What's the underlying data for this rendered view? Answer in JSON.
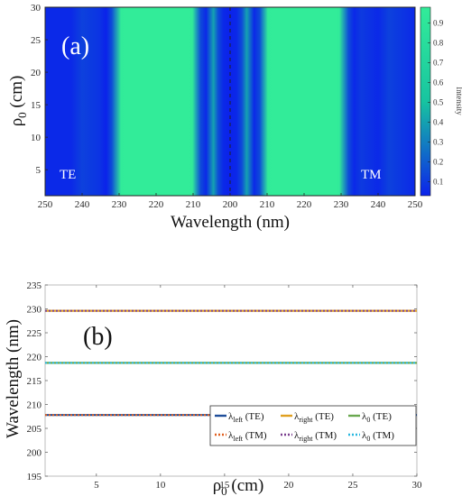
{
  "chart_data": [
    {
      "type": "heatmap",
      "panel_label": "(a)",
      "xlabel": "Wavelength (nm)",
      "ylabel_main": "ρ",
      "ylabel_sub": "0",
      "ylabel_unit": " (cm)",
      "x_ticks": [
        "250",
        "240",
        "230",
        "220",
        "210",
        "200",
        "210",
        "220",
        "230",
        "240",
        "250"
      ],
      "y_ticks": [
        "5",
        "10",
        "15",
        "20",
        "25",
        "30"
      ],
      "y_values": [
        5,
        10,
        15,
        20,
        25,
        30
      ],
      "ylim": [
        1,
        30
      ],
      "left_annotation": "TE",
      "right_annotation": "TM",
      "colorbar_label": "Intensity",
      "colorbar_ticks": [
        "0.1",
        "0.2",
        "0.3",
        "0.4",
        "0.5",
        "0.6",
        "0.7",
        "0.8",
        "0.9"
      ],
      "colorbar_values": [
        0.1,
        0.2,
        0.3,
        0.4,
        0.5,
        0.6,
        0.7,
        0.8,
        0.9
      ],
      "colorbar_range": [
        0.03,
        0.98
      ],
      "colormap": [
        "#0a18f0",
        "#17c4a0",
        "#33ee99"
      ],
      "intensity_profile": {
        "description_axis": "x position along axis, from 0 (left 250 nm TE) to 10 (right 250 nm TM)",
        "x": [
          0,
          0.7,
          1.0,
          1.45,
          1.65,
          1.8,
          2.05,
          2.2,
          3.0,
          3.8,
          3.98,
          4.2,
          4.35,
          4.55,
          4.68,
          4.82,
          5.0,
          5.18,
          5.32,
          5.45,
          5.65,
          5.8,
          6.02,
          6.2,
          7.0,
          7.8,
          7.95,
          8.2,
          8.35,
          8.55,
          9.0,
          9.3,
          10
        ],
        "intensity": [
          0.05,
          0.05,
          0.12,
          0.08,
          0.03,
          0.15,
          0.97,
          0.98,
          0.98,
          0.98,
          0.97,
          0.15,
          0.05,
          0.4,
          0.15,
          0.05,
          0.03,
          0.05,
          0.15,
          0.4,
          0.05,
          0.15,
          0.97,
          0.98,
          0.98,
          0.98,
          0.97,
          0.15,
          0.05,
          0.1,
          0.05,
          0.12,
          0.05
        ]
      }
    },
    {
      "type": "line",
      "panel_label": "(b)",
      "xlabel_main": "ρ",
      "xlabel_sub": "0",
      "xlabel_unit": " (cm)",
      "ylabel": "Wavelength (nm)",
      "xlim": [
        1,
        30
      ],
      "ylim": [
        195,
        235
      ],
      "x_ticks": [
        5,
        10,
        15,
        20,
        25,
        30
      ],
      "y_ticks": [
        195,
        200,
        205,
        210,
        215,
        220,
        225,
        230,
        235
      ],
      "series": [
        {
          "name_main": "λ",
          "name_sub": "left",
          "name_suffix": " (TE)",
          "color": "#1f4e9a",
          "style": "solid",
          "x": [
            1,
            30
          ],
          "values": [
            207.8,
            207.8
          ]
        },
        {
          "name_main": "λ",
          "name_sub": "right",
          "name_suffix": " (TE)",
          "color": "#e0a020",
          "style": "solid",
          "x": [
            1,
            30
          ],
          "values": [
            229.6,
            229.6
          ]
        },
        {
          "name_main": "λ",
          "name_sub": "0",
          "name_suffix": " (TE)",
          "color": "#6aa84f",
          "style": "solid",
          "x": [
            1,
            30
          ],
          "values": [
            218.7,
            218.7
          ]
        },
        {
          "name_main": "λ",
          "name_sub": "left",
          "name_suffix": " (TM)",
          "color": "#e06020",
          "style": "dotted",
          "x": [
            1,
            30
          ],
          "values": [
            207.8,
            207.8
          ]
        },
        {
          "name_main": "λ",
          "name_sub": "right",
          "name_suffix": " (TM)",
          "color": "#7a3f8f",
          "style": "dotted",
          "x": [
            1,
            30
          ],
          "values": [
            229.6,
            229.6
          ]
        },
        {
          "name_main": "λ",
          "name_sub": "0",
          "name_suffix": " (TM)",
          "color": "#29b8e0",
          "style": "dotted",
          "x": [
            1,
            30
          ],
          "values": [
            218.7,
            218.7
          ]
        }
      ],
      "legend_placement": "bottom-right"
    }
  ]
}
